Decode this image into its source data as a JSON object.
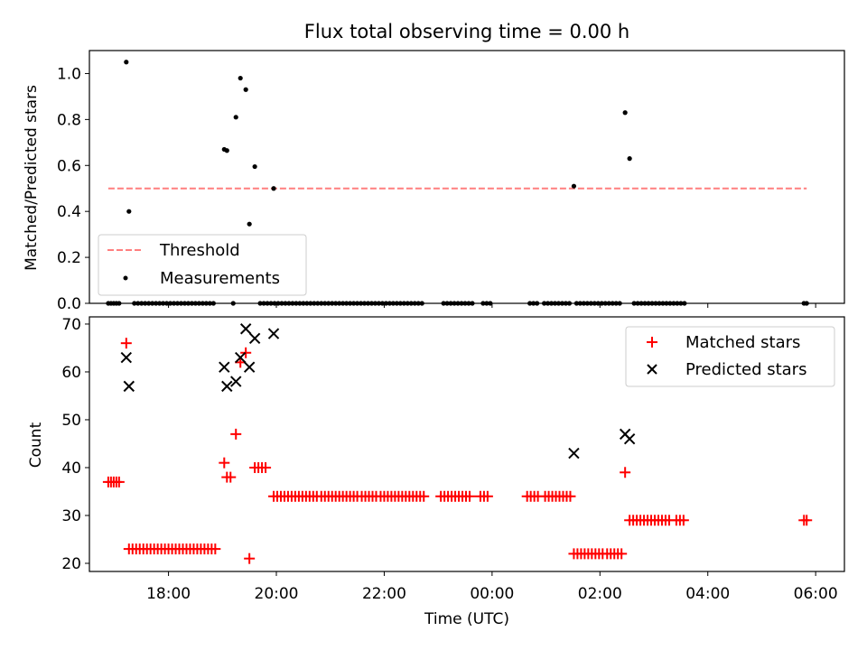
{
  "title": "Flux total observing time = 0.00 h",
  "chart_data": [
    {
      "type": "scatter",
      "ylabel": "Matched/Predicted stars",
      "ylim": [
        0,
        1.1
      ],
      "yticks": [
        "0.0",
        "0.2",
        "0.4",
        "0.6",
        "0.8",
        "1.0"
      ],
      "xlim": [
        "16:32",
        "06:32"
      ],
      "threshold": {
        "name": "Threshold",
        "value": 0.5,
        "x_start": "16:53",
        "x_end": "05:50",
        "color": "#ff7f7f"
      },
      "legend": {
        "position": "bottom-left",
        "entries": [
          "Threshold",
          "Measurements"
        ]
      },
      "series": [
        {
          "name": "Measurements",
          "color": "#000000",
          "points": [
            [
              "17:13",
              1.05
            ],
            [
              "17:16",
              0.4
            ],
            [
              "19:02",
              0.67
            ],
            [
              "19:05",
              0.665
            ],
            [
              "19:15",
              0.81
            ],
            [
              "19:20",
              0.98
            ],
            [
              "19:26",
              0.93
            ],
            [
              "19:30",
              0.345
            ],
            [
              "19:36",
              0.595
            ],
            [
              "19:57",
              0.5
            ],
            [
              "01:31",
              0.51
            ],
            [
              "02:28",
              0.83
            ],
            [
              "02:33",
              0.63
            ]
          ],
          "zero_points": [
            "16:53",
            "16:56",
            "16:59",
            "17:02",
            "17:05",
            "17:22",
            "17:26",
            "17:30",
            "17:34",
            "17:38",
            "17:42",
            "17:46",
            "17:50",
            "17:54",
            "17:58",
            "18:02",
            "18:06",
            "18:10",
            "18:14",
            "18:18",
            "18:22",
            "18:26",
            "18:30",
            "18:34",
            "18:38",
            "18:42",
            "18:46",
            "18:50",
            "19:12",
            "19:42",
            "19:46",
            "19:50",
            "19:54",
            "19:58",
            "20:02",
            "20:06",
            "20:10",
            "20:14",
            "20:18",
            "20:22",
            "20:26",
            "20:30",
            "20:34",
            "20:38",
            "20:42",
            "20:46",
            "20:50",
            "20:54",
            "20:58",
            "21:02",
            "21:06",
            "21:10",
            "21:14",
            "21:18",
            "21:22",
            "21:26",
            "21:30",
            "21:34",
            "21:38",
            "21:42",
            "21:46",
            "21:50",
            "21:54",
            "21:58",
            "22:02",
            "22:06",
            "22:10",
            "22:14",
            "22:18",
            "22:22",
            "22:26",
            "22:30",
            "22:34",
            "22:38",
            "22:42",
            "23:06",
            "23:10",
            "23:14",
            "23:18",
            "23:22",
            "23:26",
            "23:30",
            "23:34",
            "23:38",
            "23:50",
            "23:54",
            "23:58",
            "00:42",
            "00:46",
            "00:50",
            "00:58",
            "01:02",
            "01:06",
            "01:10",
            "01:14",
            "01:18",
            "01:22",
            "01:26",
            "01:34",
            "01:38",
            "01:42",
            "01:46",
            "01:50",
            "01:54",
            "01:58",
            "02:02",
            "02:06",
            "02:10",
            "02:14",
            "02:18",
            "02:22",
            "02:38",
            "02:42",
            "02:46",
            "02:50",
            "02:54",
            "02:58",
            "03:02",
            "03:06",
            "03:10",
            "03:14",
            "03:18",
            "03:22",
            "03:26",
            "03:30",
            "03:34",
            "05:47",
            "05:50"
          ]
        }
      ]
    },
    {
      "type": "scatter",
      "ylabel": "Count",
      "xlabel": "Time (UTC)",
      "ylim": [
        18.3,
        71.5
      ],
      "yticks": [
        "20",
        "30",
        "40",
        "50",
        "60",
        "70"
      ],
      "xlim": [
        "16:32",
        "06:32"
      ],
      "xticks": [
        "18:00",
        "20:00",
        "22:00",
        "00:00",
        "02:00",
        "04:00",
        "06:00"
      ],
      "legend": {
        "position": "top-right",
        "entries": [
          "Matched stars",
          "Predicted stars"
        ]
      },
      "series": [
        {
          "name": "Matched stars",
          "color": "#ff0000",
          "marker": "+",
          "points": [
            [
              "16:53",
              37
            ],
            [
              "16:56",
              37
            ],
            [
              "16:59",
              37
            ],
            [
              "17:02",
              37
            ],
            [
              "17:05",
              37
            ],
            [
              "17:13",
              66
            ],
            [
              "17:16",
              23
            ],
            [
              "17:20",
              23
            ],
            [
              "17:24",
              23
            ],
            [
              "17:28",
              23
            ],
            [
              "17:32",
              23
            ],
            [
              "17:36",
              23
            ],
            [
              "17:40",
              23
            ],
            [
              "17:44",
              23
            ],
            [
              "17:48",
              23
            ],
            [
              "17:52",
              23
            ],
            [
              "17:56",
              23
            ],
            [
              "18:00",
              23
            ],
            [
              "18:04",
              23
            ],
            [
              "18:08",
              23
            ],
            [
              "18:12",
              23
            ],
            [
              "18:16",
              23
            ],
            [
              "18:20",
              23
            ],
            [
              "18:24",
              23
            ],
            [
              "18:28",
              23
            ],
            [
              "18:32",
              23
            ],
            [
              "18:36",
              23
            ],
            [
              "18:40",
              23
            ],
            [
              "18:44",
              23
            ],
            [
              "18:48",
              23
            ],
            [
              "18:52",
              23
            ],
            [
              "19:02",
              41
            ],
            [
              "19:05",
              38
            ],
            [
              "19:09",
              38
            ],
            [
              "19:15",
              47
            ],
            [
              "19:20",
              62
            ],
            [
              "19:26",
              64
            ],
            [
              "19:30",
              21
            ],
            [
              "19:36",
              40
            ],
            [
              "19:40",
              40
            ],
            [
              "19:44",
              40
            ],
            [
              "19:48",
              40
            ],
            [
              "19:57",
              34
            ],
            [
              "20:01",
              34
            ],
            [
              "20:05",
              34
            ],
            [
              "20:09",
              34
            ],
            [
              "20:13",
              34
            ],
            [
              "20:17",
              34
            ],
            [
              "20:21",
              34
            ],
            [
              "20:25",
              34
            ],
            [
              "20:29",
              34
            ],
            [
              "20:33",
              34
            ],
            [
              "20:37",
              34
            ],
            [
              "20:41",
              34
            ],
            [
              "20:45",
              34
            ],
            [
              "20:50",
              34
            ],
            [
              "20:54",
              34
            ],
            [
              "20:58",
              34
            ],
            [
              "21:02",
              34
            ],
            [
              "21:06",
              34
            ],
            [
              "21:10",
              34
            ],
            [
              "21:14",
              34
            ],
            [
              "21:18",
              34
            ],
            [
              "21:22",
              34
            ],
            [
              "21:26",
              34
            ],
            [
              "21:30",
              34
            ],
            [
              "21:35",
              34
            ],
            [
              "21:39",
              34
            ],
            [
              "21:43",
              34
            ],
            [
              "21:47",
              34
            ],
            [
              "21:51",
              34
            ],
            [
              "21:56",
              34
            ],
            [
              "22:00",
              34
            ],
            [
              "22:04",
              34
            ],
            [
              "22:08",
              34
            ],
            [
              "22:12",
              34
            ],
            [
              "22:16",
              34
            ],
            [
              "22:20",
              34
            ],
            [
              "22:24",
              34
            ],
            [
              "22:28",
              34
            ],
            [
              "22:32",
              34
            ],
            [
              "22:36",
              34
            ],
            [
              "22:40",
              34
            ],
            [
              "22:44",
              34
            ],
            [
              "23:03",
              34
            ],
            [
              "23:07",
              34
            ],
            [
              "23:11",
              34
            ],
            [
              "23:15",
              34
            ],
            [
              "23:19",
              34
            ],
            [
              "23:23",
              34
            ],
            [
              "23:27",
              34
            ],
            [
              "23:31",
              34
            ],
            [
              "23:35",
              34
            ],
            [
              "23:47",
              34
            ],
            [
              "23:51",
              34
            ],
            [
              "23:55",
              34
            ],
            [
              "00:39",
              34
            ],
            [
              "00:43",
              34
            ],
            [
              "00:47",
              34
            ],
            [
              "00:51",
              34
            ],
            [
              "00:59",
              34
            ],
            [
              "01:03",
              34
            ],
            [
              "01:07",
              34
            ],
            [
              "01:11",
              34
            ],
            [
              "01:15",
              34
            ],
            [
              "01:19",
              34
            ],
            [
              "01:23",
              34
            ],
            [
              "01:27",
              34
            ],
            [
              "01:31",
              22
            ],
            [
              "01:35",
              22
            ],
            [
              "01:39",
              22
            ],
            [
              "01:43",
              22
            ],
            [
              "01:47",
              22
            ],
            [
              "01:51",
              22
            ],
            [
              "01:55",
              22
            ],
            [
              "01:59",
              22
            ],
            [
              "02:03",
              22
            ],
            [
              "02:08",
              22
            ],
            [
              "02:12",
              22
            ],
            [
              "02:16",
              22
            ],
            [
              "02:20",
              22
            ],
            [
              "02:24",
              22
            ],
            [
              "02:28",
              39
            ],
            [
              "02:33",
              29
            ],
            [
              "02:37",
              29
            ],
            [
              "02:41",
              29
            ],
            [
              "02:45",
              29
            ],
            [
              "02:49",
              29
            ],
            [
              "02:53",
              29
            ],
            [
              "02:57",
              29
            ],
            [
              "03:01",
              29
            ],
            [
              "03:05",
              29
            ],
            [
              "03:09",
              29
            ],
            [
              "03:13",
              29
            ],
            [
              "03:17",
              29
            ],
            [
              "03:25",
              29
            ],
            [
              "03:29",
              29
            ],
            [
              "03:33",
              29
            ],
            [
              "05:47",
              29
            ],
            [
              "05:50",
              29
            ]
          ]
        },
        {
          "name": "Predicted stars",
          "color": "#000000",
          "marker": "x",
          "points": [
            [
              "17:13",
              63
            ],
            [
              "17:16",
              57
            ],
            [
              "19:02",
              61
            ],
            [
              "19:05",
              57
            ],
            [
              "19:15",
              58
            ],
            [
              "19:20",
              63
            ],
            [
              "19:26",
              69
            ],
            [
              "19:30",
              61
            ],
            [
              "19:36",
              67
            ],
            [
              "19:57",
              68
            ],
            [
              "01:31",
              43
            ],
            [
              "02:28",
              47
            ],
            [
              "02:33",
              46
            ]
          ]
        }
      ]
    }
  ]
}
